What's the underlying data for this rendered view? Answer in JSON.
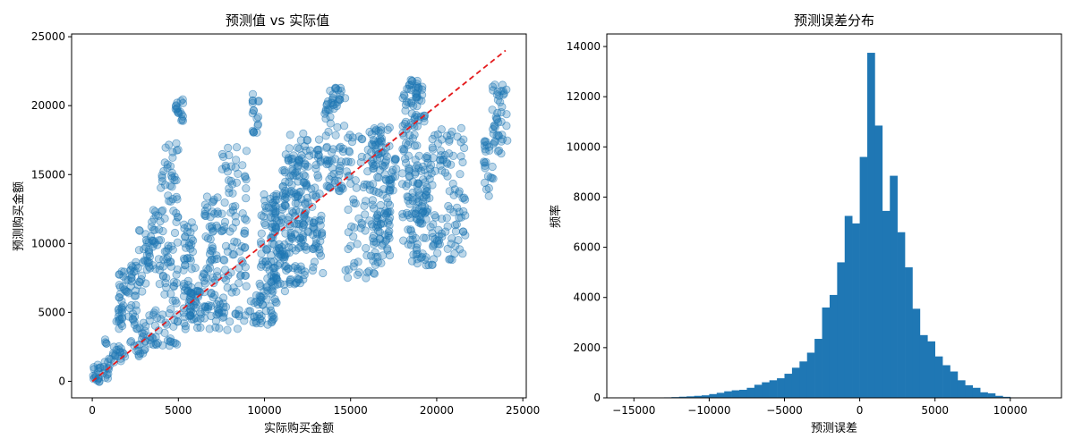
{
  "chart_data": [
    {
      "type": "scatter",
      "title": "预测值 vs 实际值",
      "xlabel": "实际购买金额",
      "ylabel": "预测购买金额",
      "xlim": [
        -1200,
        25200
      ],
      "ylim": [
        -1200,
        25200
      ],
      "xticks": [
        0,
        5000,
        10000,
        15000,
        20000,
        25000
      ],
      "yticks": [
        0,
        5000,
        10000,
        15000,
        20000,
        25000
      ],
      "grid": false,
      "point_color": "#1f77b4",
      "point_alpha": 0.3,
      "reference_line": {
        "x": [
          0,
          24000
        ],
        "y": [
          0,
          24000
        ],
        "color": "#e41a1c",
        "style": "dashed"
      },
      "clusters": [
        {
          "x": [
            0,
            500
          ],
          "y": [
            -300,
            1200
          ]
        },
        {
          "x": [
            500,
            1100
          ],
          "y": [
            200,
            3200
          ]
        },
        {
          "x": [
            1200,
            1900
          ],
          "y": [
            1000,
            2600
          ]
        },
        {
          "x": [
            1400,
            1900
          ],
          "y": [
            3800,
            5500
          ]
        },
        {
          "x": [
            1500,
            2100
          ],
          "y": [
            5800,
            8000
          ]
        },
        {
          "x": [
            2100,
            2700
          ],
          "y": [
            2000,
            8700
          ]
        },
        {
          "x": [
            2600,
            3200
          ],
          "y": [
            1700,
            4500
          ]
        },
        {
          "x": [
            2700,
            3300
          ],
          "y": [
            6500,
            11000
          ]
        },
        {
          "x": [
            3300,
            3900
          ],
          "y": [
            2500,
            5200
          ]
        },
        {
          "x": [
            3300,
            4000
          ],
          "y": [
            8000,
            12600
          ]
        },
        {
          "x": [
            3900,
            5000
          ],
          "y": [
            2500,
            17300
          ]
        },
        {
          "x": [
            4800,
            5300
          ],
          "y": [
            18800,
            20600
          ]
        },
        {
          "x": [
            5300,
            5800
          ],
          "y": [
            3700,
            7400
          ]
        },
        {
          "x": [
            5300,
            6100
          ],
          "y": [
            4500,
            12000
          ]
        },
        {
          "x": [
            6000,
            6600
          ],
          "y": [
            3700,
            8000
          ]
        },
        {
          "x": [
            6500,
            7300
          ],
          "y": [
            7000,
            13600
          ]
        },
        {
          "x": [
            6700,
            7700
          ],
          "y": [
            3700,
            6500
          ]
        },
        {
          "x": [
            7500,
            9000
          ],
          "y": [
            3700,
            17500
          ]
        },
        {
          "x": [
            8900,
            9900
          ],
          "y": [
            4200,
            6300
          ]
        },
        {
          "x": [
            9300,
            9700
          ],
          "y": [
            18000,
            21000
          ]
        },
        {
          "x": [
            9700,
            10700
          ],
          "y": [
            4100,
            13600
          ]
        },
        {
          "x": [
            10400,
            11200
          ],
          "y": [
            6500,
            14200
          ]
        },
        {
          "x": [
            11000,
            12400
          ],
          "y": [
            7000,
            16500
          ]
        },
        {
          "x": [
            11400,
            13300
          ],
          "y": [
            9400,
            18000
          ]
        },
        {
          "x": [
            12800,
            13400
          ],
          "y": [
            7400,
            12200
          ]
        },
        {
          "x": [
            13500,
            14600
          ],
          "y": [
            13700,
            17500
          ]
        },
        {
          "x": [
            13500,
            14700
          ],
          "y": [
            17800,
            21300
          ]
        },
        {
          "x": [
            14700,
            16800
          ],
          "y": [
            7400,
            18100
          ]
        },
        {
          "x": [
            16200,
            17300
          ],
          "y": [
            9100,
            18500
          ]
        },
        {
          "x": [
            17000,
            17700
          ],
          "y": [
            13600,
            16400
          ]
        },
        {
          "x": [
            18000,
            18900
          ],
          "y": [
            8500,
            21800
          ]
        },
        {
          "x": [
            18300,
            19300
          ],
          "y": [
            18800,
            21900
          ]
        },
        {
          "x": [
            18800,
            19800
          ],
          "y": [
            8400,
            16400
          ]
        },
        {
          "x": [
            19700,
            21700
          ],
          "y": [
            8700,
            18400
          ]
        },
        {
          "x": [
            22700,
            23300
          ],
          "y": [
            13300,
            17600
          ]
        },
        {
          "x": [
            23200,
            24100
          ],
          "y": [
            16500,
            21700
          ]
        }
      ]
    },
    {
      "type": "bar",
      "title": "预测误差分布",
      "xlabel": "预测误差",
      "ylabel": "频率",
      "xlim": [
        -16800,
        13400
      ],
      "ylim": [
        0,
        14500
      ],
      "xticks": [
        -15000,
        -10000,
        -5000,
        0,
        5000,
        10000
      ],
      "yticks": [
        0,
        2000,
        4000,
        6000,
        8000,
        10000,
        12000,
        14000
      ],
      "grid": false,
      "bar_color": "#1f77b4",
      "bin_start": -16000,
      "bin_width": 500,
      "values": [
        0,
        2,
        5,
        8,
        10,
        14,
        20,
        30,
        45,
        60,
        80,
        100,
        150,
        200,
        260,
        300,
        320,
        400,
        520,
        620,
        700,
        780,
        960,
        1200,
        1450,
        1800,
        2350,
        3600,
        4100,
        5400,
        7250,
        6950,
        9600,
        13750,
        10850,
        7450,
        8850,
        6600,
        5200,
        3550,
        2500,
        2250,
        1650,
        1300,
        1050,
        700,
        500,
        400,
        220,
        180,
        80,
        40,
        15
      ]
    }
  ]
}
